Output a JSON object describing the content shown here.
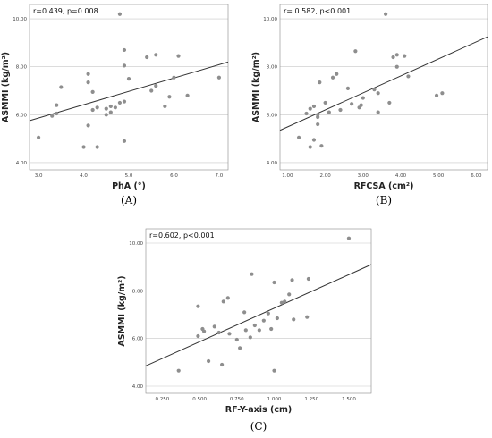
{
  "chart_data": [
    {
      "type": "scatter",
      "panel_label": "(A)",
      "annotation": "r=0.439, p=0.008",
      "xlabel": "PhA (°)",
      "ylabel": "ASMMI (kg/m²)",
      "xlim": [
        2.8,
        7.2
      ],
      "ylim": [
        3.7,
        10.6
      ],
      "xticks": [
        "3.0",
        "4.0",
        "5.0",
        "6.0",
        "7.0"
      ],
      "yticks": [
        "4.00",
        "6.00",
        "8.00",
        "10.00"
      ],
      "grid": "horizontal",
      "fit_line": [
        [
          2.8,
          5.75
        ],
        [
          7.2,
          8.2
        ]
      ],
      "points": [
        [
          3.0,
          5.05
        ],
        [
          3.3,
          5.95
        ],
        [
          3.4,
          6.05
        ],
        [
          3.4,
          6.4
        ],
        [
          3.5,
          7.15
        ],
        [
          4.0,
          4.65
        ],
        [
          4.1,
          7.7
        ],
        [
          4.1,
          7.35
        ],
        [
          4.1,
          5.55
        ],
        [
          4.2,
          6.2
        ],
        [
          4.2,
          6.95
        ],
        [
          4.3,
          6.3
        ],
        [
          4.3,
          4.65
        ],
        [
          4.5,
          6.25
        ],
        [
          4.5,
          6.0
        ],
        [
          4.6,
          6.35
        ],
        [
          4.6,
          6.1
        ],
        [
          4.7,
          6.3
        ],
        [
          4.8,
          10.2
        ],
        [
          4.8,
          6.5
        ],
        [
          4.9,
          8.7
        ],
        [
          4.9,
          8.05
        ],
        [
          4.9,
          6.55
        ],
        [
          4.9,
          4.9
        ],
        [
          5.0,
          7.5
        ],
        [
          5.4,
          8.4
        ],
        [
          5.5,
          7.0
        ],
        [
          5.6,
          8.5
        ],
        [
          5.6,
          7.2
        ],
        [
          5.8,
          6.35
        ],
        [
          5.9,
          6.75
        ],
        [
          6.0,
          7.55
        ],
        [
          6.1,
          8.45
        ],
        [
          6.3,
          6.8
        ],
        [
          7.0,
          7.55
        ]
      ]
    },
    {
      "type": "scatter",
      "panel_label": "(B)",
      "annotation": "r= 0.582, p<0.001",
      "xlabel": "RFCSA (cm²)",
      "ylabel": "ASMMI (kg/m²)",
      "xlim": [
        0.8,
        6.3
      ],
      "ylim": [
        3.7,
        10.6
      ],
      "xticks": [
        "1.00",
        "2.00",
        "3.00",
        "4.00",
        "5.00",
        "6.00"
      ],
      "yticks": [
        "4.00",
        "6.00",
        "8.00",
        "10.00"
      ],
      "grid": "horizontal",
      "fit_line": [
        [
          0.8,
          5.35
        ],
        [
          6.3,
          9.25
        ]
      ],
      "points": [
        [
          1.3,
          5.05
        ],
        [
          1.5,
          6.05
        ],
        [
          1.6,
          4.65
        ],
        [
          1.6,
          6.25
        ],
        [
          1.7,
          6.35
        ],
        [
          1.7,
          4.95
        ],
        [
          1.8,
          5.9
        ],
        [
          1.8,
          6.0
        ],
        [
          1.8,
          5.6
        ],
        [
          1.85,
          7.35
        ],
        [
          1.9,
          4.7
        ],
        [
          2.0,
          6.5
        ],
        [
          2.1,
          6.1
        ],
        [
          2.2,
          7.55
        ],
        [
          2.3,
          7.7
        ],
        [
          2.4,
          6.2
        ],
        [
          2.6,
          7.1
        ],
        [
          2.7,
          6.45
        ],
        [
          2.8,
          8.65
        ],
        [
          2.9,
          6.3
        ],
        [
          2.95,
          6.4
        ],
        [
          3.0,
          6.7
        ],
        [
          3.3,
          7.05
        ],
        [
          3.4,
          6.1
        ],
        [
          3.4,
          6.9
        ],
        [
          3.6,
          10.2
        ],
        [
          3.7,
          6.5
        ],
        [
          3.8,
          8.4
        ],
        [
          3.9,
          8.5
        ],
        [
          3.9,
          8.0
        ],
        [
          4.1,
          8.45
        ],
        [
          4.2,
          7.6
        ],
        [
          4.95,
          6.8
        ],
        [
          5.1,
          6.9
        ]
      ]
    },
    {
      "type": "scatter",
      "panel_label": "(C)",
      "annotation": "r=0.602, p<0.001",
      "xlabel": "RF-Y-axis (cm)",
      "ylabel": "ASMMI (kg/m²)",
      "xlim": [
        0.14,
        1.65
      ],
      "ylim": [
        3.7,
        10.6
      ],
      "xticks": [
        "0.250",
        "0.500",
        "0.750",
        "1.000",
        "1.250",
        "1.500"
      ],
      "yticks": [
        "4.00",
        "6.00",
        "8.00",
        "10.00"
      ],
      "grid": "horizontal",
      "fit_line": [
        [
          0.14,
          4.85
        ],
        [
          1.65,
          9.1
        ]
      ],
      "points": [
        [
          0.36,
          4.65
        ],
        [
          0.49,
          7.35
        ],
        [
          0.49,
          6.1
        ],
        [
          0.52,
          6.4
        ],
        [
          0.53,
          6.3
        ],
        [
          0.56,
          5.05
        ],
        [
          0.6,
          6.5
        ],
        [
          0.63,
          6.25
        ],
        [
          0.65,
          4.9
        ],
        [
          0.66,
          7.55
        ],
        [
          0.69,
          7.7
        ],
        [
          0.7,
          6.2
        ],
        [
          0.75,
          5.95
        ],
        [
          0.77,
          5.6
        ],
        [
          0.8,
          7.1
        ],
        [
          0.81,
          6.35
        ],
        [
          0.84,
          6.05
        ],
        [
          0.85,
          8.7
        ],
        [
          0.87,
          6.55
        ],
        [
          0.9,
          6.35
        ],
        [
          0.93,
          6.75
        ],
        [
          0.96,
          7.05
        ],
        [
          0.98,
          6.4
        ],
        [
          1.0,
          4.65
        ],
        [
          1.0,
          8.35
        ],
        [
          1.02,
          6.85
        ],
        [
          1.05,
          7.5
        ],
        [
          1.07,
          7.55
        ],
        [
          1.1,
          7.85
        ],
        [
          1.12,
          8.45
        ],
        [
          1.13,
          6.8
        ],
        [
          1.22,
          6.9
        ],
        [
          1.23,
          8.5
        ],
        [
          1.5,
          10.2
        ]
      ]
    }
  ]
}
